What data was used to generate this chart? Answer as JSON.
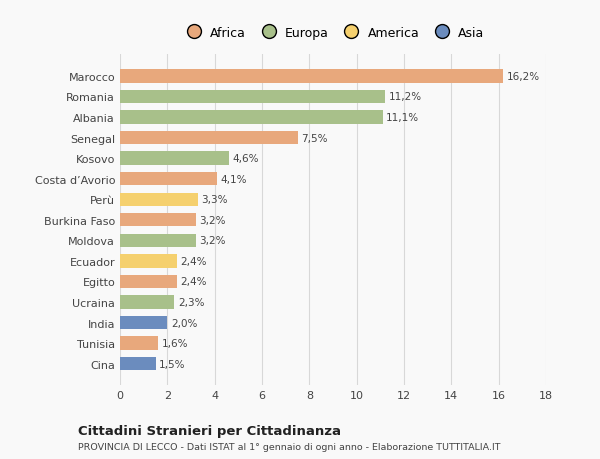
{
  "categories": [
    "Cina",
    "Tunisia",
    "India",
    "Ucraina",
    "Egitto",
    "Ecuador",
    "Moldova",
    "Burkina Faso",
    "Perù",
    "Costa d’Avorio",
    "Kosovo",
    "Senegal",
    "Albania",
    "Romania",
    "Marocco"
  ],
  "values": [
    1.5,
    1.6,
    2.0,
    2.3,
    2.4,
    2.4,
    3.2,
    3.2,
    3.3,
    4.1,
    4.6,
    7.5,
    11.1,
    11.2,
    16.2
  ],
  "labels": [
    "1,5%",
    "1,6%",
    "2,0%",
    "2,3%",
    "2,4%",
    "2,4%",
    "3,2%",
    "3,2%",
    "3,3%",
    "4,1%",
    "4,6%",
    "7,5%",
    "11,1%",
    "11,2%",
    "16,2%"
  ],
  "continents": [
    "Asia",
    "Africa",
    "Asia",
    "Europa",
    "Africa",
    "America",
    "Europa",
    "Africa",
    "America",
    "Africa",
    "Europa",
    "Africa",
    "Europa",
    "Europa",
    "Africa"
  ],
  "colors": {
    "Africa": "#E8A87C",
    "Europa": "#A8C08A",
    "America": "#F5D06E",
    "Asia": "#6B8CBE"
  },
  "legend_order": [
    "Africa",
    "Europa",
    "America",
    "Asia"
  ],
  "legend_colors": [
    "#E8A87C",
    "#A8C08A",
    "#F5D06E",
    "#6B8CBE"
  ],
  "xlim": [
    0,
    18
  ],
  "xticks": [
    0,
    2,
    4,
    6,
    8,
    10,
    12,
    14,
    16,
    18
  ],
  "title": "Cittadini Stranieri per Cittadinanza",
  "subtitle": "PROVINCIA DI LECCO - Dati ISTAT al 1° gennaio di ogni anno - Elaborazione TUTTITALIA.IT",
  "background_color": "#f9f9f9",
  "grid_color": "#d8d8d8",
  "bar_height": 0.65
}
